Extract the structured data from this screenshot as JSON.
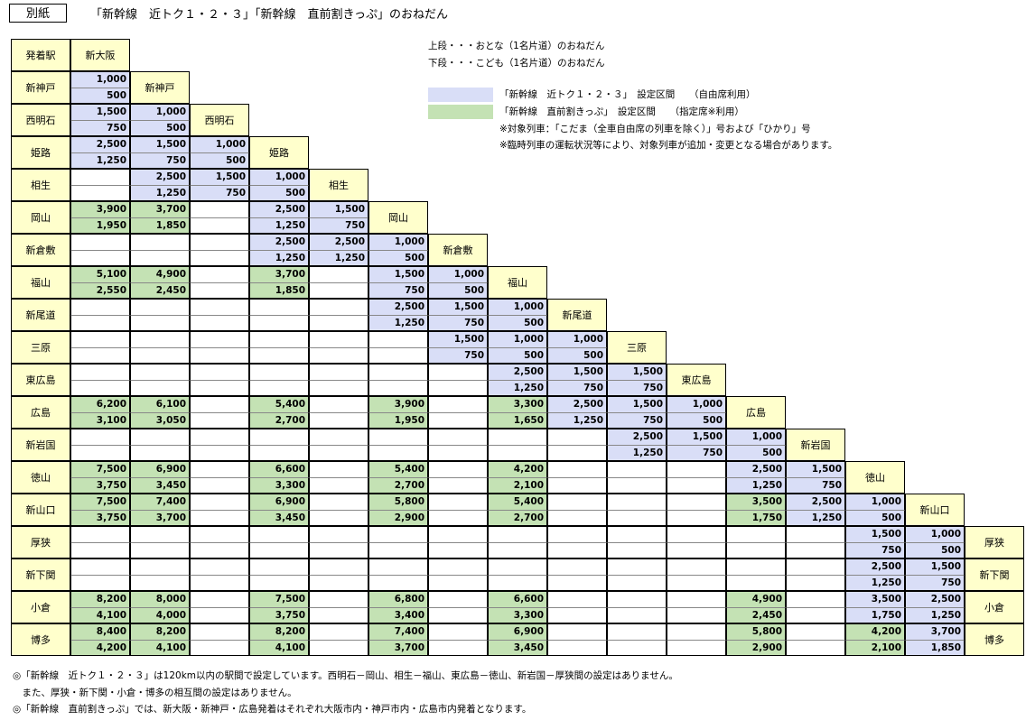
{
  "header": {
    "label": "別紙",
    "title": "「新幹線　近トク１・２・３」「新幹線　直前割きっぷ」のおねだん"
  },
  "table": {
    "corner_label": "発着駅",
    "first_station": "新大阪",
    "stations": [
      "新神戸",
      "西明石",
      "姫路",
      "相生",
      "岡山",
      "新倉敷",
      "福山",
      "新尾道",
      "三原",
      "東広島",
      "広島",
      "新岩国",
      "徳山",
      "新山口",
      "厚狭",
      "新下関",
      "小倉",
      "博多"
    ],
    "cells": [
      [
        [
          "1,000",
          "500",
          "B"
        ]
      ],
      [
        [
          "1,500",
          "750",
          "B"
        ],
        [
          "1,000",
          "500",
          "B"
        ]
      ],
      [
        [
          "2,500",
          "1,250",
          "B"
        ],
        [
          "1,500",
          "750",
          "B"
        ],
        [
          "1,000",
          "500",
          "B"
        ]
      ],
      [
        [
          "",
          "",
          ""
        ],
        [
          "2,500",
          "1,250",
          "B"
        ],
        [
          "1,500",
          "750",
          "B"
        ],
        [
          "1,000",
          "500",
          "B"
        ]
      ],
      [
        [
          "3,900",
          "1,950",
          "G"
        ],
        [
          "3,700",
          "1,850",
          "G"
        ],
        [
          "",
          "",
          ""
        ],
        [
          "2,500",
          "1,250",
          "B"
        ],
        [
          "1,500",
          "750",
          "B"
        ]
      ],
      [
        [
          "",
          "",
          ""
        ],
        [
          "",
          "",
          ""
        ],
        [
          "",
          "",
          ""
        ],
        [
          "2,500",
          "1,250",
          "B"
        ],
        [
          "2,500",
          "1,250",
          "B"
        ],
        [
          "1,000",
          "500",
          "B"
        ]
      ],
      [
        [
          "5,100",
          "2,550",
          "G"
        ],
        [
          "4,900",
          "2,450",
          "G"
        ],
        [
          "",
          "",
          ""
        ],
        [
          "3,700",
          "1,850",
          "G"
        ],
        [
          "",
          "",
          ""
        ],
        [
          "1,500",
          "750",
          "B"
        ],
        [
          "1,000",
          "500",
          "B"
        ]
      ],
      [
        [
          "",
          "",
          ""
        ],
        [
          "",
          "",
          ""
        ],
        [
          "",
          "",
          ""
        ],
        [
          "",
          "",
          ""
        ],
        [
          "",
          "",
          ""
        ],
        [
          "2,500",
          "1,250",
          "B"
        ],
        [
          "1,500",
          "750",
          "B"
        ],
        [
          "1,000",
          "500",
          "B"
        ]
      ],
      [
        [
          "",
          "",
          ""
        ],
        [
          "",
          "",
          ""
        ],
        [
          "",
          "",
          ""
        ],
        [
          "",
          "",
          ""
        ],
        [
          "",
          "",
          ""
        ],
        [
          "",
          "",
          ""
        ],
        [
          "1,500",
          "750",
          "B"
        ],
        [
          "1,000",
          "500",
          "B"
        ],
        [
          "1,000",
          "500",
          "B"
        ]
      ],
      [
        [
          "",
          "",
          ""
        ],
        [
          "",
          "",
          ""
        ],
        [
          "",
          "",
          ""
        ],
        [
          "",
          "",
          ""
        ],
        [
          "",
          "",
          ""
        ],
        [
          "",
          "",
          ""
        ],
        [
          "",
          "",
          ""
        ],
        [
          "2,500",
          "1,250",
          "B"
        ],
        [
          "1,500",
          "750",
          "B"
        ],
        [
          "1,500",
          "750",
          "B"
        ]
      ],
      [
        [
          "6,200",
          "3,100",
          "G"
        ],
        [
          "6,100",
          "3,050",
          "G"
        ],
        [
          "",
          "",
          ""
        ],
        [
          "5,400",
          "2,700",
          "G"
        ],
        [
          "",
          "",
          ""
        ],
        [
          "3,900",
          "1,950",
          "G"
        ],
        [
          "",
          "",
          ""
        ],
        [
          "3,300",
          "1,650",
          "G"
        ],
        [
          "2,500",
          "1,250",
          "B"
        ],
        [
          "1,500",
          "750",
          "B"
        ],
        [
          "1,000",
          "500",
          "B"
        ]
      ],
      [
        [
          "",
          "",
          ""
        ],
        [
          "",
          "",
          ""
        ],
        [
          "",
          "",
          ""
        ],
        [
          "",
          "",
          ""
        ],
        [
          "",
          "",
          ""
        ],
        [
          "",
          "",
          ""
        ],
        [
          "",
          "",
          ""
        ],
        [
          "",
          "",
          ""
        ],
        [
          "",
          "",
          ""
        ],
        [
          "2,500",
          "1,250",
          "B"
        ],
        [
          "1,500",
          "750",
          "B"
        ],
        [
          "1,000",
          "500",
          "B"
        ]
      ],
      [
        [
          "7,500",
          "3,750",
          "G"
        ],
        [
          "6,900",
          "3,450",
          "G"
        ],
        [
          "",
          "",
          ""
        ],
        [
          "6,600",
          "3,300",
          "G"
        ],
        [
          "",
          "",
          ""
        ],
        [
          "5,400",
          "2,700",
          "G"
        ],
        [
          "",
          "",
          ""
        ],
        [
          "4,200",
          "2,100",
          "G"
        ],
        [
          "",
          "",
          ""
        ],
        [
          "",
          "",
          ""
        ],
        [
          "",
          "",
          ""
        ],
        [
          "2,500",
          "1,250",
          "B"
        ],
        [
          "1,500",
          "750",
          "B"
        ]
      ],
      [
        [
          "7,500",
          "3,750",
          "G"
        ],
        [
          "7,400",
          "3,700",
          "G"
        ],
        [
          "",
          "",
          ""
        ],
        [
          "6,900",
          "3,450",
          "G"
        ],
        [
          "",
          "",
          ""
        ],
        [
          "5,800",
          "2,900",
          "G"
        ],
        [
          "",
          "",
          ""
        ],
        [
          "5,400",
          "2,700",
          "G"
        ],
        [
          "",
          "",
          ""
        ],
        [
          "",
          "",
          ""
        ],
        [
          "",
          "",
          ""
        ],
        [
          "3,500",
          "1,750",
          "G"
        ],
        [
          "2,500",
          "1,250",
          "B"
        ],
        [
          "1,000",
          "500",
          "B"
        ]
      ],
      [
        [
          "",
          "",
          ""
        ],
        [
          "",
          "",
          ""
        ],
        [
          "",
          "",
          ""
        ],
        [
          "",
          "",
          ""
        ],
        [
          "",
          "",
          ""
        ],
        [
          "",
          "",
          ""
        ],
        [
          "",
          "",
          ""
        ],
        [
          "",
          "",
          ""
        ],
        [
          "",
          "",
          ""
        ],
        [
          "",
          "",
          ""
        ],
        [
          "",
          "",
          ""
        ],
        [
          "",
          "",
          ""
        ],
        [
          "",
          "",
          ""
        ],
        [
          "1,500",
          "750",
          "B"
        ],
        [
          "1,000",
          "500",
          "B"
        ]
      ],
      [
        [
          "",
          "",
          ""
        ],
        [
          "",
          "",
          ""
        ],
        [
          "",
          "",
          ""
        ],
        [
          "",
          "",
          ""
        ],
        [
          "",
          "",
          ""
        ],
        [
          "",
          "",
          ""
        ],
        [
          "",
          "",
          ""
        ],
        [
          "",
          "",
          ""
        ],
        [
          "",
          "",
          ""
        ],
        [
          "",
          "",
          ""
        ],
        [
          "",
          "",
          ""
        ],
        [
          "",
          "",
          ""
        ],
        [
          "",
          "",
          ""
        ],
        [
          "2,500",
          "1,250",
          "B"
        ],
        [
          "1,500",
          "750",
          "B"
        ]
      ],
      [
        [
          "8,200",
          "4,100",
          "G"
        ],
        [
          "8,000",
          "4,000",
          "G"
        ],
        [
          "",
          "",
          ""
        ],
        [
          "7,500",
          "3,750",
          "G"
        ],
        [
          "",
          "",
          ""
        ],
        [
          "6,800",
          "3,400",
          "G"
        ],
        [
          "",
          "",
          ""
        ],
        [
          "6,600",
          "3,300",
          "G"
        ],
        [
          "",
          "",
          ""
        ],
        [
          "",
          "",
          ""
        ],
        [
          "",
          "",
          ""
        ],
        [
          "4,900",
          "2,450",
          "G"
        ],
        [
          "",
          "",
          ""
        ],
        [
          "3,500",
          "1,750",
          "B"
        ],
        [
          "2,500",
          "1,250",
          "B"
        ]
      ],
      [
        [
          "8,400",
          "4,200",
          "G"
        ],
        [
          "8,200",
          "4,100",
          "G"
        ],
        [
          "",
          "",
          ""
        ],
        [
          "8,200",
          "4,100",
          "G"
        ],
        [
          "",
          "",
          ""
        ],
        [
          "7,400",
          "3,700",
          "G"
        ],
        [
          "",
          "",
          ""
        ],
        [
          "6,900",
          "3,450",
          "G"
        ],
        [
          "",
          "",
          ""
        ],
        [
          "",
          "",
          ""
        ],
        [
          "",
          "",
          ""
        ],
        [
          "5,800",
          "2,900",
          "G"
        ],
        [
          "",
          "",
          ""
        ],
        [
          "4,200",
          "2,100",
          "G"
        ],
        [
          "3,700",
          "1,850",
          "B"
        ]
      ]
    ]
  },
  "legend": {
    "notes": [
      "上段・・・おとな（1名片道）のおねだん",
      "下段・・・こども（1名片道）のおねだん"
    ],
    "blue_label": "「新幹線　近トク１・２・３」　設定区間　　（自由席利用）",
    "green_label": "「新幹線　直前割きっぷ」　設定区間　　（指定席※利用）",
    "extra": [
      "※対象列車：「こだま（全車自由席の列車を除く）」号および「ひかり」号",
      "※臨時列車の運転状況等により、対象列車が追加・変更となる場合があります。"
    ],
    "colors": {
      "blue": "#d9def7",
      "green": "#c4e2b4",
      "station": "#ffffcc"
    }
  },
  "footnotes": [
    "◎「新幹線　近トク１・２・３」は120km以内の駅間で設定しています。西明石－岡山、相生－福山、東広島－徳山、新岩国－厚狭間の設定はありません。",
    "　また、厚狭・新下関・小倉・博多の相互間の設定はありません。",
    "◎「新幹線　直前割きっぷ」では、新大阪・新神戸・広島発着はそれぞれ大阪市内・神戸市内・広島市内発着となります。"
  ]
}
